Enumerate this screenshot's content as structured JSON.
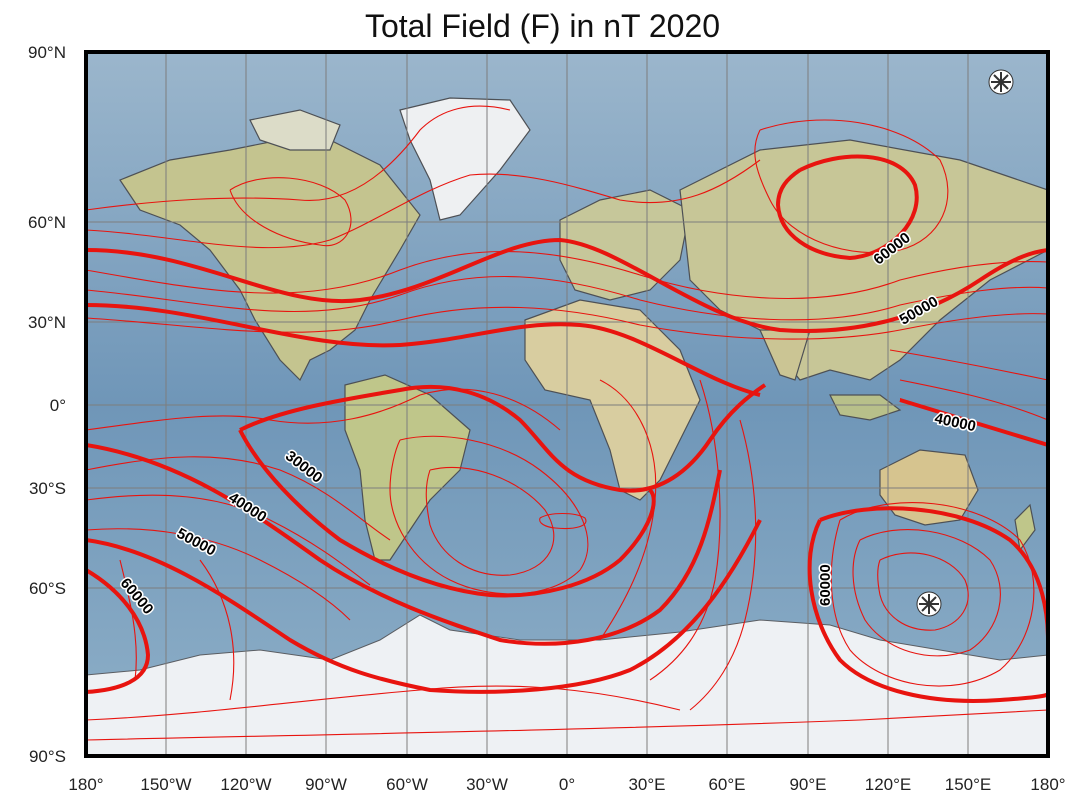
{
  "title": "Total Field (F) in nT 2020",
  "lat_labels": [
    "90°N",
    "60°N",
    "30°N",
    "0°",
    "30°S",
    "60°S",
    "90°S"
  ],
  "lon_labels": [
    "180°",
    "150°W",
    "120°W",
    "90°W",
    "60°W",
    "30°W",
    "0°",
    "30°E",
    "60°E",
    "90°E",
    "120°E",
    "150°E",
    "180°"
  ],
  "contour_labels": [
    "60000",
    "50000",
    "40000",
    "30000",
    "40000",
    "50000",
    "60000",
    "60000"
  ],
  "colors": {
    "contour": "#e8140f",
    "ocean": "#7fa3c2",
    "land": "#c9c79a",
    "ice": "#f0f3f6",
    "frame": "#000000",
    "grid": "#8a8a8a"
  },
  "icons": [
    "north-magnetic-pole-asterisk-icon",
    "south-magnetic-pole-asterisk-icon"
  ]
}
